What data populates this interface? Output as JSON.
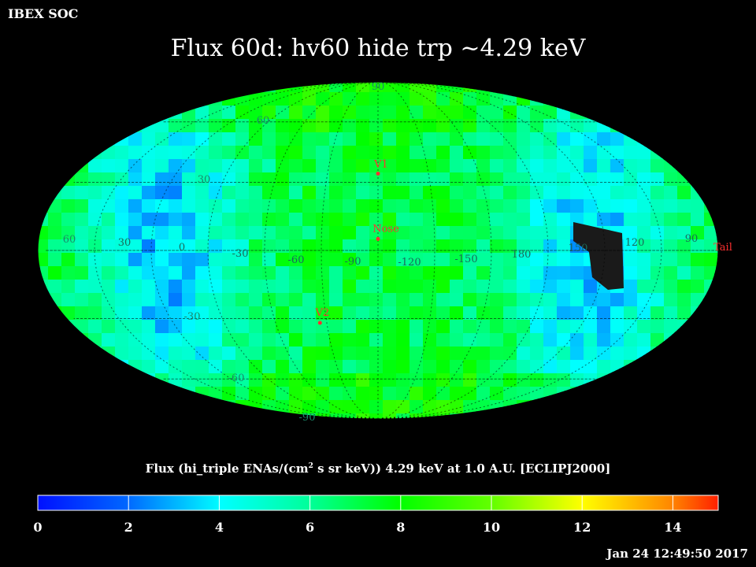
{
  "header": {
    "corner_label": "IBEX SOC",
    "title": "Flux   60d: hv60 hide trp ~4.29 keV"
  },
  "map": {
    "lat_labels": {
      "north_pole": "90",
      "north_60": "60",
      "north_30": "30",
      "equator_left": "60",
      "south_30": "-30",
      "south_60": "-60",
      "south_pole": "-90"
    },
    "lon_labels": [
      "30",
      "0",
      "-30",
      "-60",
      "-90",
      "-120",
      "-150",
      "180",
      "150",
      "120",
      "90"
    ],
    "markers": [
      {
        "label": "V1",
        "lon": 255,
        "lat": 34
      },
      {
        "label": "Nose",
        "lon": 255,
        "lat": 5
      },
      {
        "label": "V2",
        "lon": 289,
        "lat": -32
      },
      {
        "label": "Tail",
        "lon": 75,
        "lat": -5
      }
    ],
    "colors": {
      "marker": "#ff3030",
      "grid": "#000000",
      "no_data": "#1a1a1a"
    }
  },
  "colorbar": {
    "title_pre": "Flux (hi_triple ENAs/(cm",
    "title_sup": "2",
    "title_post": " s sr keV))  4.29 keV at 1.0 A.U. [ECLIPJ2000]",
    "ticks": [
      "0",
      "2",
      "4",
      "6",
      "8",
      "10",
      "12",
      "14"
    ],
    "range": [
      0,
      15
    ]
  },
  "footer": {
    "timestamp": "Jan 24 12:49:50 2017"
  }
}
